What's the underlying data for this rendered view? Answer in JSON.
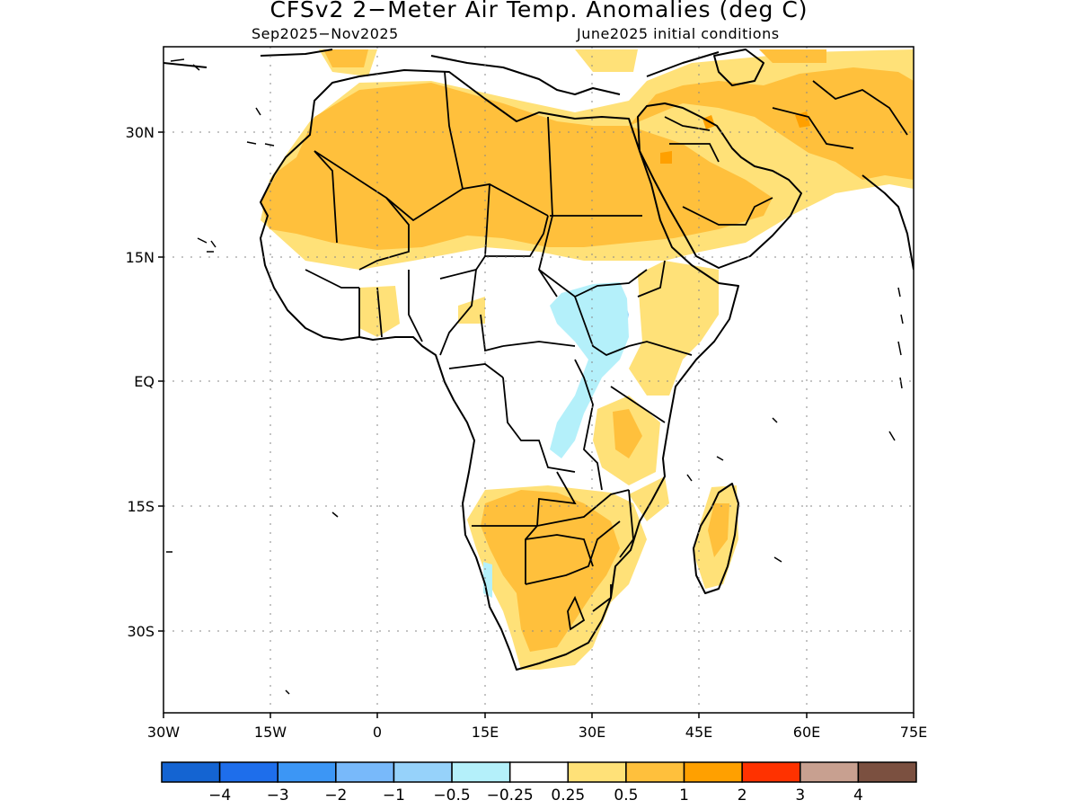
{
  "title": "CFSv2 2−Meter Air Temp. Anomalies (deg C)",
  "subtitle_left": "Sep2025−Nov2025",
  "subtitle_right": "June2025 initial conditions",
  "map": {
    "lon_range": [
      -30,
      75
    ],
    "lat_range": [
      -40,
      41
    ],
    "x_ticks": [
      "30W",
      "15W",
      "0",
      "15E",
      "30E",
      "45E",
      "60E",
      "75E"
    ],
    "y_ticks": [
      "30N",
      "15N",
      "EQ",
      "15S",
      "30S"
    ],
    "gridlines": true
  },
  "colorbar": {
    "colors": [
      "#1464d2",
      "#1e6eeb",
      "#3c96f5",
      "#78b9fa",
      "#96d2fa",
      "#b4f0fa",
      "#ffffff",
      "#ffe178",
      "#ffc03c",
      "#ffa000",
      "#ff3200",
      "#c8a090",
      "#7b5040"
    ],
    "labels": [
      "−4",
      "−3",
      "−2",
      "−1",
      "−0.5",
      "−0.25",
      "0.25",
      "0.5",
      "1",
      "2",
      "3",
      "4"
    ]
  },
  "legend": {
    "anomaly_colors": {
      "light_orange": "#ffe178",
      "orange": "#ffc03c",
      "dark_orange": "#ffa000",
      "light_blue": "#96d2fa",
      "pale_blue": "#b4f0fa"
    }
  }
}
